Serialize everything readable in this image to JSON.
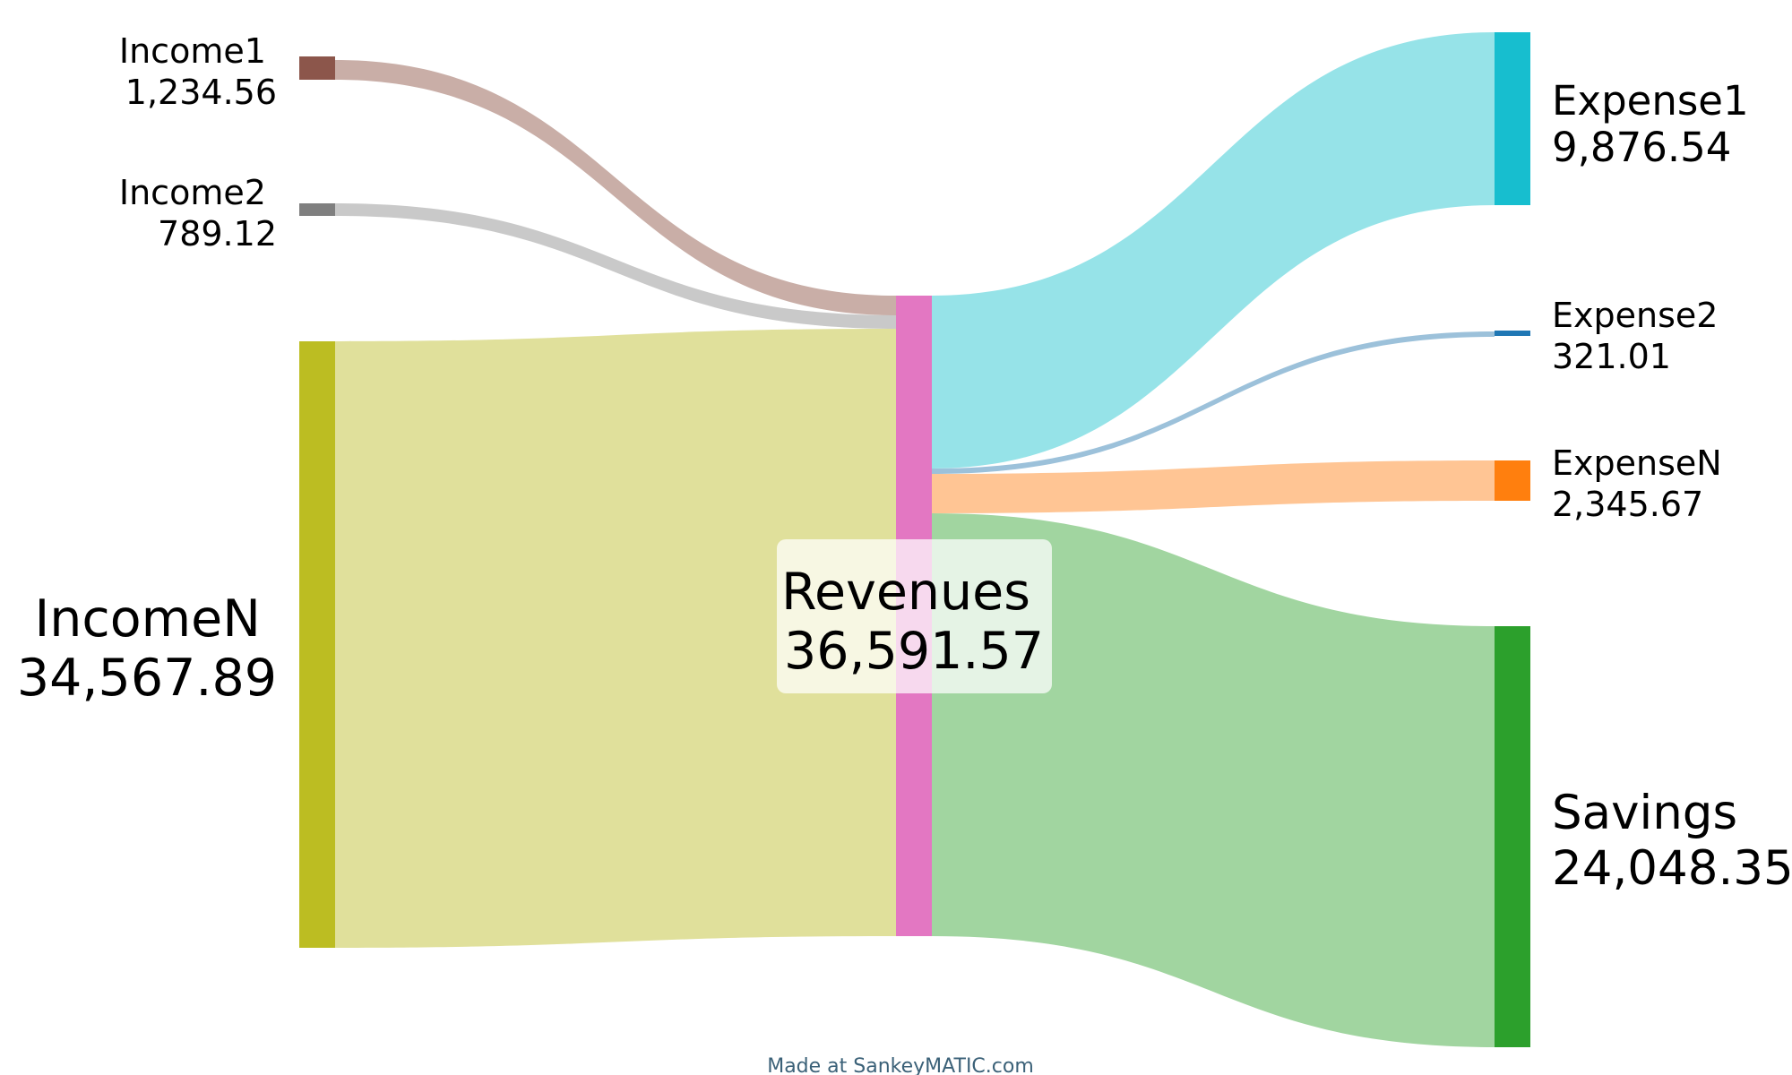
{
  "diagram": {
    "type": "sankey",
    "nodes": [
      {
        "id": "income1",
        "name": "Income1",
        "value": "1,234.56",
        "color": "#8c564b"
      },
      {
        "id": "income2",
        "name": "Income2",
        "value": "789.12",
        "color": "#7f7f7f"
      },
      {
        "id": "incomen",
        "name": "IncomeN",
        "value": "34,567.89",
        "color": "#bcbd22"
      },
      {
        "id": "revenues",
        "name": "Revenues",
        "value": "36,591.57",
        "color": "#e377c2"
      },
      {
        "id": "expense1",
        "name": "Expense1",
        "value": "9,876.54",
        "color": "#17becf"
      },
      {
        "id": "expense2",
        "name": "Expense2",
        "value": "321.01",
        "color": "#1f77b4"
      },
      {
        "id": "expensen",
        "name": "ExpenseN",
        "value": "2,345.67",
        "color": "#ff7f0e"
      },
      {
        "id": "savings",
        "name": "Savings",
        "value": "24,048.35",
        "color": "#2ca02c"
      }
    ],
    "flows": [
      {
        "from": "Income1",
        "to": "Revenues",
        "amount": 1234.56,
        "color": "#c9aea7"
      },
      {
        "from": "Income2",
        "to": "Revenues",
        "amount": 789.12,
        "color": "#c9c9c9"
      },
      {
        "from": "IncomeN",
        "to": "Revenues",
        "amount": 34567.89,
        "color": "#e0e09b"
      },
      {
        "from": "Revenues",
        "to": "Expense1",
        "amount": 9876.54,
        "color": "#96e3e8"
      },
      {
        "from": "Revenues",
        "to": "Expense2",
        "amount": 321.01,
        "color": "#9cc1da"
      },
      {
        "from": "Revenues",
        "to": "ExpenseN",
        "amount": 2345.67,
        "color": "#ffc594"
      },
      {
        "from": "Revenues",
        "to": "Savings",
        "amount": 24048.35,
        "color": "#a1d5a0"
      }
    ]
  },
  "footer": {
    "credit": "Made at SankeyMATIC.com",
    "color": "#3b6178"
  }
}
